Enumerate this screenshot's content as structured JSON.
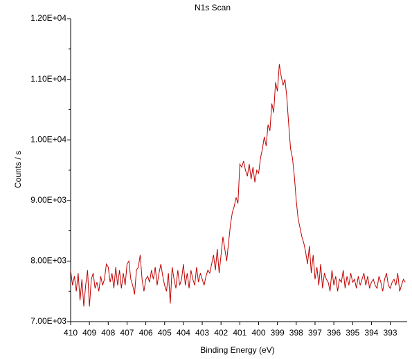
{
  "chart_data": {
    "type": "line",
    "title": "N1s Scan",
    "xlabel": "Binding Energy (eV)",
    "ylabel": "Counts / s",
    "xlim": [
      410,
      392.1
    ],
    "ylim": [
      7000,
      12000
    ],
    "xticks": [
      410,
      409,
      408,
      407,
      406,
      405,
      404,
      403,
      402,
      401,
      400,
      399,
      398,
      397,
      396,
      395,
      394,
      393
    ],
    "yticks": [
      {
        "value": 7000,
        "label": "7.00E+03"
      },
      {
        "value": 8000,
        "label": "8.00E+03"
      },
      {
        "value": 9000,
        "label": "9.00E+03"
      },
      {
        "value": 10000,
        "label": "1.00E+04"
      },
      {
        "value": 11000,
        "label": "1.10E+04"
      },
      {
        "value": 12000,
        "label": "1.20E+04"
      }
    ],
    "yminorticks": [
      7500,
      8500,
      9500,
      10500,
      11500
    ],
    "grid": false,
    "series": [
      {
        "color": "#c00000",
        "x": [
          410.0,
          409.9,
          409.8,
          409.7,
          409.6,
          409.5,
          409.4,
          409.3,
          409.2,
          409.1,
          409.0,
          408.9,
          408.8,
          408.7,
          408.6,
          408.5,
          408.4,
          408.3,
          408.2,
          408.1,
          408.0,
          407.9,
          407.8,
          407.7,
          407.6,
          407.5,
          407.4,
          407.3,
          407.2,
          407.1,
          407.0,
          406.9,
          406.8,
          406.7,
          406.6,
          406.5,
          406.4,
          406.3,
          406.2,
          406.1,
          406.0,
          405.9,
          405.8,
          405.7,
          405.6,
          405.5,
          405.4,
          405.3,
          405.2,
          405.1,
          405.0,
          404.9,
          404.8,
          404.7,
          404.6,
          404.5,
          404.4,
          404.3,
          404.2,
          404.1,
          404.0,
          403.9,
          403.8,
          403.7,
          403.6,
          403.5,
          403.4,
          403.3,
          403.2,
          403.1,
          403.0,
          402.9,
          402.8,
          402.7,
          402.6,
          402.5,
          402.4,
          402.3,
          402.2,
          402.1,
          402.0,
          401.9,
          401.8,
          401.7,
          401.6,
          401.5,
          401.4,
          401.3,
          401.2,
          401.1,
          401.0,
          400.9,
          400.8,
          400.7,
          400.6,
          400.5,
          400.4,
          400.3,
          400.2,
          400.1,
          400.0,
          399.9,
          399.8,
          399.7,
          399.6,
          399.5,
          399.4,
          399.3,
          399.2,
          399.1,
          399.0,
          398.9,
          398.8,
          398.7,
          398.6,
          398.5,
          398.4,
          398.3,
          398.2,
          398.1,
          398.0,
          397.9,
          397.8,
          397.7,
          397.6,
          397.5,
          397.4,
          397.3,
          397.2,
          397.1,
          397.0,
          396.9,
          396.8,
          396.7,
          396.6,
          396.5,
          396.4,
          396.3,
          396.2,
          396.1,
          396.0,
          395.9,
          395.8,
          395.7,
          395.6,
          395.5,
          395.4,
          395.3,
          395.2,
          395.1,
          395.0,
          394.9,
          394.8,
          394.7,
          394.6,
          394.5,
          394.4,
          394.3,
          394.2,
          394.1,
          394.0,
          393.9,
          393.8,
          393.7,
          393.6,
          393.5,
          393.4,
          393.3,
          393.2,
          393.1,
          393.0,
          392.9,
          392.8,
          392.7,
          392.6,
          392.5,
          392.4,
          392.3,
          392.2
        ],
        "values": [
          7850,
          7600,
          7750,
          7500,
          7800,
          7350,
          7700,
          7250,
          7600,
          7850,
          7250,
          7700,
          7800,
          7550,
          7650,
          7500,
          7750,
          7600,
          7700,
          7950,
          7900,
          7650,
          7800,
          7550,
          7900,
          7600,
          7850,
          7550,
          7800,
          7600,
          7950,
          8000,
          7700,
          7600,
          7450,
          7850,
          7900,
          8100,
          7700,
          7500,
          7700,
          7750,
          7650,
          7850,
          7700,
          7900,
          7600,
          7800,
          7950,
          7750,
          7600,
          7500,
          7800,
          7300,
          7900,
          7700,
          7550,
          7850,
          7600,
          7700,
          7950,
          7600,
          7800,
          7550,
          7850,
          7700,
          7600,
          7900,
          7650,
          7800,
          7700,
          7600,
          7750,
          7850,
          7800,
          7950,
          8100,
          7850,
          8200,
          7800,
          8100,
          8400,
          8200,
          8000,
          8300,
          8600,
          8800,
          8900,
          9050,
          8950,
          9600,
          9550,
          9650,
          9500,
          9400,
          9600,
          9350,
          9550,
          9300,
          9500,
          9450,
          9700,
          9850,
          10050,
          9900,
          10250,
          10150,
          10600,
          10450,
          10950,
          10800,
          11250,
          11050,
          10900,
          11000,
          10700,
          10250,
          9850,
          9700,
          9400,
          9000,
          8700,
          8550,
          8400,
          8300,
          8150,
          7950,
          8250,
          7800,
          8100,
          7700,
          7900,
          7600,
          7950,
          7550,
          7800,
          7700,
          7650,
          7500,
          7850,
          7600,
          7750,
          7500,
          7700,
          7650,
          7850,
          7550,
          7750,
          7600,
          7800,
          7650,
          7700,
          7550,
          7750,
          7600,
          7700,
          7800,
          7600,
          7750,
          7550,
          7650,
          7700,
          7600,
          7550,
          7750,
          7650,
          7500,
          7700,
          7800,
          7600,
          7550,
          7650,
          7700,
          7600,
          7800,
          7500,
          7600,
          7700,
          7650
        ]
      }
    ]
  }
}
